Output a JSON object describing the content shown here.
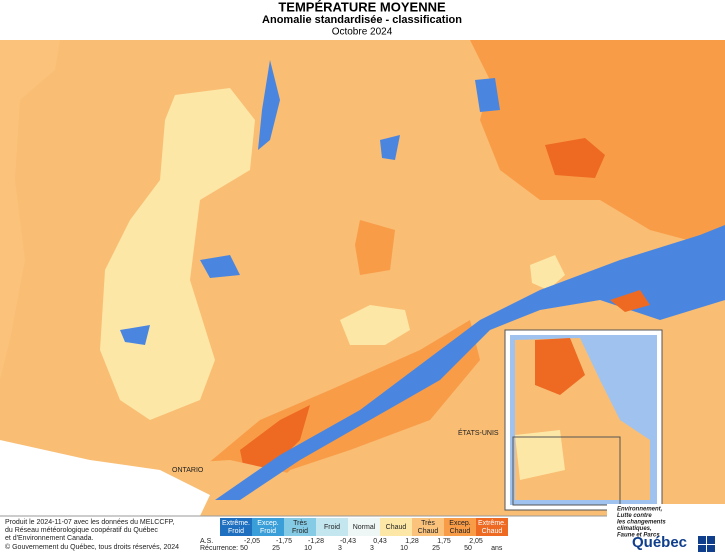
{
  "header": {
    "title": "TEMPÉRATURE MOYENNE",
    "subtitle": "Anomalie standardisée - classification",
    "date": "Octobre 2024"
  },
  "map_labels": {
    "ontario": "ONTARIO",
    "usa": "ÉTATS-UNIS"
  },
  "legend": {
    "classes": [
      {
        "label": [
          "Extrême.",
          "Froid"
        ],
        "color": "#1f6fc0"
      },
      {
        "label": [
          "Excep.",
          "Froid"
        ],
        "color": "#3a9fd8"
      },
      {
        "label": [
          "Très",
          "Froid"
        ],
        "color": "#85cbe6"
      },
      {
        "label": [
          "Froid"
        ],
        "color": "#c3e6ef"
      },
      {
        "label": [
          "Normal"
        ],
        "color": "#eef7f6"
      },
      {
        "label": [
          "Chaud"
        ],
        "color": "#fde7a6"
      },
      {
        "label": [
          "Très",
          "Chaud"
        ],
        "color": "#fbc27c"
      },
      {
        "label": [
          "Excep.",
          "Chaud"
        ],
        "color": "#f89c48"
      },
      {
        "label": [
          "Extrême.",
          "Chaud"
        ],
        "color": "#ee6922"
      }
    ],
    "as_label": "A.S.",
    "as_values": [
      "-2,05",
      "-1,75",
      "-1,28",
      "-0,43",
      "0,43",
      "1,28",
      "1,75",
      "2,05"
    ],
    "recurrence_label": "Récurrence:",
    "recurrence_values": [
      50,
      25,
      10,
      3,
      3,
      10,
      25,
      50
    ],
    "recurrence_unit": "ans"
  },
  "footer": {
    "credit": [
      "Produit le 2024-11-07 avec les données du MELCCFP,",
      "du Réseau météorologique coopératif du Québec",
      "et d'Environnement Canada."
    ],
    "copyright": "© Gouvernement du Québec, tous droits réservés, 2024"
  },
  "logo": {
    "ministry": [
      "Environnement,",
      "Lutte contre",
      "les changements",
      "climatiques,",
      "Faune et Parcs"
    ],
    "brand": "Québec"
  }
}
